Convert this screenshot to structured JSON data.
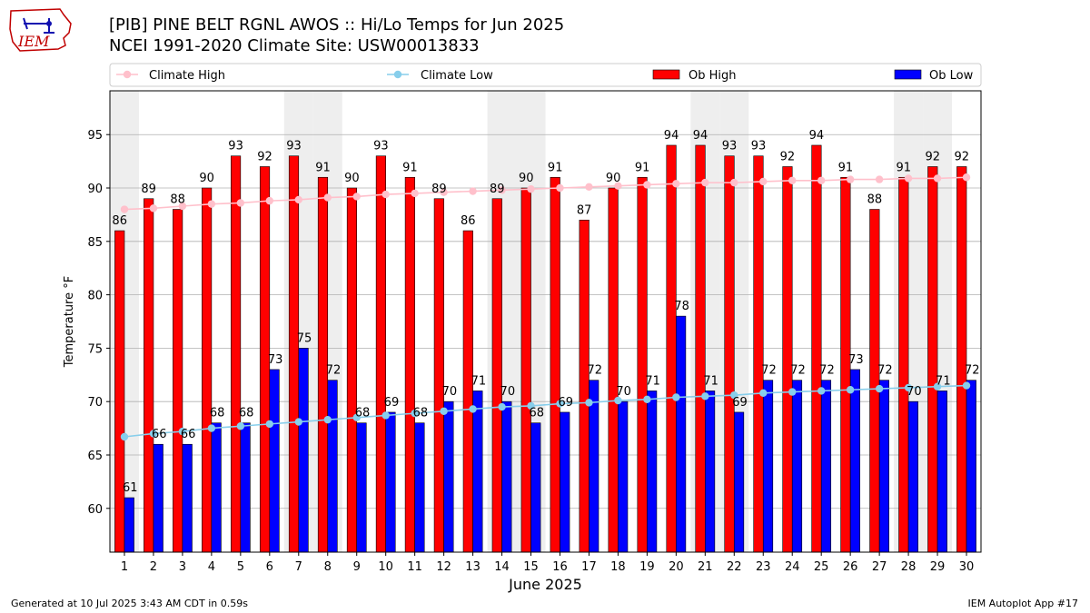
{
  "header": {
    "title_line1": "[PIB] PINE BELT RGNL AWOS :: Hi/Lo Temps for Jun 2025",
    "title_line2": "NCEI 1991-2020 Climate Site: USW00013833",
    "logo_text": "IEM"
  },
  "footer": {
    "left": "Generated at 10 Jul 2025 3:43 AM CDT in 0.59s",
    "right": "IEM Autoplot App #17"
  },
  "colors": {
    "ob_high": "#ff0000",
    "ob_low": "#0000ff",
    "climate_high": "#ffc0cb",
    "climate_low": "#87ceeb",
    "weekend_band": "#eeeeee",
    "grid": "#b0b0b0"
  },
  "chart_data": {
    "type": "bar",
    "xlabel": "June 2025",
    "ylabel": "Temperature °F",
    "ylim": [
      55.9,
      99.1
    ],
    "yticks": [
      60,
      65,
      70,
      75,
      80,
      85,
      90,
      95
    ],
    "grid": true,
    "legend_position": "top",
    "categories": [
      "1",
      "2",
      "3",
      "4",
      "5",
      "6",
      "7",
      "8",
      "9",
      "10",
      "11",
      "12",
      "13",
      "14",
      "15",
      "16",
      "17",
      "18",
      "19",
      "20",
      "21",
      "22",
      "23",
      "24",
      "25",
      "26",
      "27",
      "28",
      "29",
      "30"
    ],
    "weekend_days": [
      1,
      7,
      8,
      14,
      15,
      21,
      22,
      28,
      29
    ],
    "series": [
      {
        "name": "Climate High",
        "kind": "line",
        "values": [
          88.0,
          88.1,
          88.3,
          88.5,
          88.6,
          88.8,
          88.9,
          89.1,
          89.2,
          89.4,
          89.5,
          89.6,
          89.7,
          89.8,
          89.9,
          90.0,
          90.1,
          90.2,
          90.3,
          90.4,
          90.5,
          90.5,
          90.6,
          90.7,
          90.7,
          90.8,
          90.8,
          90.9,
          90.9,
          91.0
        ]
      },
      {
        "name": "Climate Low",
        "kind": "line",
        "values": [
          66.7,
          67.0,
          67.2,
          67.5,
          67.7,
          67.9,
          68.1,
          68.3,
          68.5,
          68.7,
          68.9,
          69.1,
          69.3,
          69.5,
          69.6,
          69.8,
          69.9,
          70.1,
          70.2,
          70.4,
          70.5,
          70.6,
          70.8,
          70.9,
          71.0,
          71.1,
          71.2,
          71.3,
          71.4,
          71.5
        ]
      },
      {
        "name": "Ob High",
        "kind": "bar",
        "values": [
          86,
          89,
          88,
          90,
          93,
          92,
          93,
          91,
          90,
          93,
          91,
          89,
          86,
          89,
          90,
          91,
          87,
          90,
          91,
          94,
          94,
          93,
          93,
          92,
          94,
          91,
          88,
          91,
          92,
          92
        ]
      },
      {
        "name": "Ob Low",
        "kind": "bar",
        "values": [
          61,
          66,
          66,
          68,
          68,
          73,
          75,
          72,
          68,
          69,
          68,
          70,
          71,
          70,
          68,
          69,
          72,
          70,
          71,
          78,
          71,
          69,
          72,
          72,
          72,
          73,
          72,
          70,
          71,
          72
        ]
      }
    ]
  }
}
